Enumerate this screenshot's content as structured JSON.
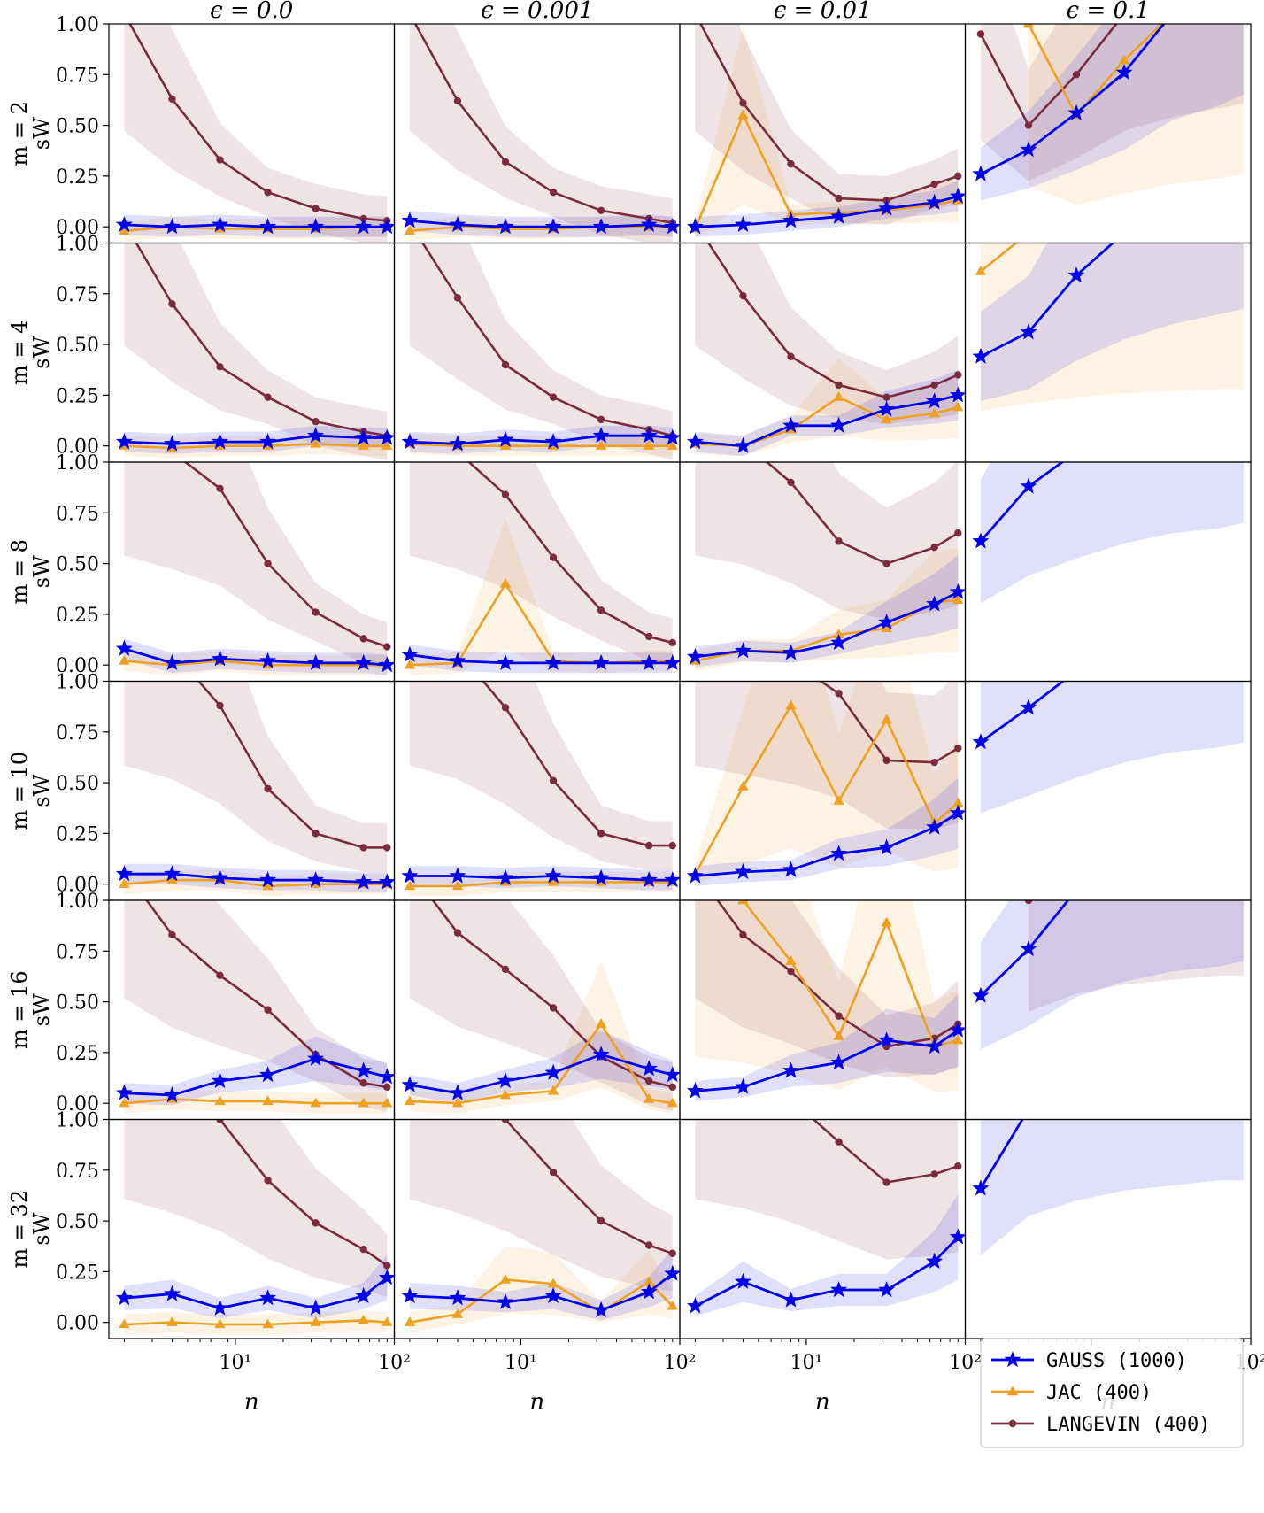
{
  "chart_data": {
    "type": "line",
    "xscale": "log",
    "xlim": [
      1.6,
      100
    ],
    "ylim": [
      -0.08,
      1.0
    ],
    "x": [
      2,
      4,
      8,
      16,
      32,
      64,
      90
    ],
    "xlabel": "n",
    "ylabel": "sW",
    "x_ticks": [
      "10¹",
      "10²"
    ],
    "y_ticks": [
      "0.00",
      "0.25",
      "0.50",
      "0.75",
      "1.00"
    ],
    "col_titles": [
      "ϵ = 0.0",
      "ϵ = 0.001",
      "ϵ = 0.01",
      "ϵ = 0.1"
    ],
    "row_labels": [
      "m = 2",
      "m = 4",
      "m = 8",
      "m = 10",
      "m = 16",
      "m = 32"
    ],
    "colors": {
      "GAUSS": "#0000ee",
      "JAC": "#f0a020",
      "LANGEVIN": "#7b2c3c"
    },
    "legend": {
      "position": "lower-right of last panel",
      "entries": [
        "GAUSS (1000)",
        "JAC (400)",
        "LANGEVIN (400)"
      ]
    },
    "panels": [
      [
        {
          "GAUSS": [
            0.01,
            0.0,
            0.01,
            0.0,
            0.0,
            0.0,
            0.0
          ],
          "JAC": [
            -0.02,
            0.0,
            -0.01,
            -0.01,
            -0.01,
            0.0,
            0.0
          ],
          "LANGEVIN": [
            1.05,
            0.63,
            0.33,
            0.17,
            0.09,
            0.04,
            0.03
          ]
        },
        {
          "GAUSS": [
            0.03,
            0.01,
            0.0,
            0.0,
            0.0,
            0.01,
            0.0
          ],
          "JAC": [
            -0.02,
            0.0,
            -0.01,
            -0.01,
            0.0,
            0.0,
            0.0
          ],
          "LANGEVIN": [
            1.05,
            0.62,
            0.32,
            0.17,
            0.08,
            0.04,
            0.02
          ]
        },
        {
          "GAUSS": [
            0.0,
            0.01,
            0.03,
            0.05,
            0.09,
            0.12,
            0.15
          ],
          "JAC": [
            -0.01,
            0.55,
            0.06,
            0.07,
            0.08,
            0.11,
            0.13
          ],
          "LANGEVIN": [
            1.05,
            0.61,
            0.31,
            0.14,
            0.13,
            0.21,
            0.25
          ]
        },
        {
          "GAUSS": [
            0.26,
            0.38,
            0.56,
            0.76,
            1.05,
            1.2,
            1.3
          ],
          "JAC": [
            null,
            1.0,
            0.55,
            0.82,
            1.05,
            1.2,
            1.3
          ],
          "LANGEVIN": [
            0.95,
            0.5,
            0.75,
            1.05,
            1.2,
            1.3,
            1.35
          ]
        }
      ],
      [
        {
          "GAUSS": [
            0.02,
            0.01,
            0.02,
            0.02,
            0.05,
            0.04,
            0.04
          ],
          "JAC": [
            0.0,
            -0.01,
            0.0,
            0.0,
            0.01,
            0.0,
            0.0
          ],
          "LANGEVIN": [
            1.1,
            0.7,
            0.39,
            0.24,
            0.12,
            0.07,
            0.05
          ]
        },
        {
          "GAUSS": [
            0.02,
            0.01,
            0.03,
            0.02,
            0.05,
            0.05,
            0.04
          ],
          "JAC": [
            0.01,
            0.0,
            0.0,
            0.0,
            0.0,
            0.0,
            0.0
          ],
          "LANGEVIN": [
            1.1,
            0.73,
            0.4,
            0.24,
            0.13,
            0.08,
            0.05
          ]
        },
        {
          "GAUSS": [
            0.02,
            0.0,
            0.1,
            0.1,
            0.18,
            0.22,
            0.25
          ],
          "JAC": [
            0.01,
            0.0,
            0.08,
            0.24,
            0.13,
            0.16,
            0.19
          ],
          "LANGEVIN": [
            1.1,
            0.74,
            0.44,
            0.3,
            0.24,
            0.3,
            0.35
          ]
        },
        {
          "GAUSS": [
            0.44,
            0.56,
            0.84,
            1.05,
            1.2,
            1.3,
            1.35
          ],
          "JAC": [
            0.86,
            1.05,
            1.2,
            1.3,
            1.35,
            1.4,
            1.4
          ],
          "LANGEVIN": [
            null,
            null,
            null,
            null,
            null,
            null,
            null
          ]
        }
      ],
      [
        {
          "GAUSS": [
            0.08,
            0.01,
            0.03,
            0.02,
            0.01,
            0.01,
            0.0
          ],
          "JAC": [
            0.02,
            0.0,
            0.02,
            0.0,
            0.0,
            0.0,
            0.0
          ],
          "LANGEVIN": [
            1.2,
            1.05,
            0.87,
            0.5,
            0.26,
            0.13,
            0.09
          ]
        },
        {
          "GAUSS": [
            0.05,
            0.02,
            0.01,
            0.01,
            0.01,
            0.01,
            0.01
          ],
          "JAC": [
            0.0,
            0.01,
            0.4,
            0.02,
            0.01,
            0.02,
            0.02
          ],
          "LANGEVIN": [
            1.2,
            1.05,
            0.84,
            0.53,
            0.27,
            0.14,
            0.11
          ]
        },
        {
          "GAUSS": [
            0.04,
            0.07,
            0.06,
            0.11,
            0.21,
            0.3,
            0.36
          ],
          "JAC": [
            0.02,
            0.07,
            0.07,
            0.15,
            0.18,
            0.31,
            0.32
          ],
          "LANGEVIN": [
            1.2,
            1.1,
            0.9,
            0.61,
            0.5,
            0.58,
            0.65
          ]
        },
        {
          "GAUSS": [
            0.61,
            0.88,
            1.05,
            1.2,
            1.3,
            1.35,
            1.4
          ],
          "JAC": [
            null,
            null,
            null,
            null,
            null,
            null,
            null
          ],
          "LANGEVIN": [
            null,
            null,
            null,
            null,
            null,
            null,
            null
          ]
        }
      ],
      [
        {
          "GAUSS": [
            0.05,
            0.05,
            0.03,
            0.02,
            0.02,
            0.01,
            0.01
          ],
          "JAC": [
            0.0,
            0.02,
            0.02,
            -0.01,
            0.0,
            0.0,
            0.0
          ],
          "LANGEVIN": [
            1.3,
            1.15,
            0.88,
            0.47,
            0.25,
            0.18,
            0.18
          ]
        },
        {
          "GAUSS": [
            0.04,
            0.04,
            0.03,
            0.04,
            0.03,
            0.02,
            0.02
          ],
          "JAC": [
            -0.01,
            -0.01,
            0.01,
            0.01,
            0.01,
            0.01,
            0.01
          ],
          "LANGEVIN": [
            1.3,
            1.15,
            0.87,
            0.51,
            0.25,
            0.19,
            0.19
          ]
        },
        {
          "GAUSS": [
            0.04,
            0.06,
            0.07,
            0.15,
            0.18,
            0.28,
            0.35
          ],
          "JAC": [
            0.05,
            0.48,
            0.88,
            0.41,
            0.81,
            0.3,
            0.4
          ],
          "LANGEVIN": [
            1.3,
            1.2,
            1.1,
            0.94,
            0.61,
            0.6,
            0.67
          ]
        },
        {
          "GAUSS": [
            0.7,
            0.87,
            1.05,
            1.2,
            1.3,
            1.35,
            1.4
          ],
          "JAC": [
            null,
            null,
            null,
            null,
            null,
            null,
            null
          ],
          "LANGEVIN": [
            null,
            null,
            null,
            null,
            null,
            null,
            null
          ]
        }
      ],
      [
        {
          "GAUSS": [
            0.05,
            0.04,
            0.11,
            0.14,
            0.22,
            0.16,
            0.13
          ],
          "JAC": [
            0.0,
            0.02,
            0.01,
            0.01,
            0.0,
            0.0,
            0.0
          ],
          "LANGEVIN": [
            1.15,
            0.83,
            0.63,
            0.46,
            0.24,
            0.1,
            0.08
          ]
        },
        {
          "GAUSS": [
            0.09,
            0.05,
            0.11,
            0.15,
            0.24,
            0.17,
            0.14
          ],
          "JAC": [
            0.01,
            0.0,
            0.04,
            0.06,
            0.39,
            0.02,
            0.0
          ],
          "LANGEVIN": [
            1.15,
            0.84,
            0.66,
            0.47,
            0.23,
            0.11,
            0.08
          ]
        },
        {
          "GAUSS": [
            0.06,
            0.08,
            0.16,
            0.2,
            0.31,
            0.28,
            0.36
          ],
          "JAC": [
            1.15,
            1.0,
            0.7,
            0.33,
            0.89,
            0.28,
            0.31
          ],
          "LANGEVIN": [
            1.15,
            0.83,
            0.65,
            0.43,
            0.28,
            0.32,
            0.39
          ]
        },
        {
          "GAUSS": [
            0.53,
            0.76,
            1.05,
            1.2,
            1.3,
            1.35,
            1.4
          ],
          "JAC": [
            null,
            null,
            null,
            null,
            null,
            null,
            null
          ],
          "LANGEVIN": [
            null,
            1.0,
            1.2,
            1.3,
            1.35,
            1.4,
            1.4
          ]
        }
      ],
      [
        {
          "GAUSS": [
            0.12,
            0.14,
            0.07,
            0.12,
            0.07,
            0.13,
            0.22
          ],
          "JAC": [
            -0.01,
            0.0,
            -0.01,
            -0.01,
            0.0,
            0.01,
            0.0
          ],
          "LANGEVIN": [
            1.35,
            1.2,
            1.0,
            0.7,
            0.49,
            0.36,
            0.28
          ]
        },
        {
          "GAUSS": [
            0.13,
            0.12,
            0.1,
            0.13,
            0.06,
            0.15,
            0.24
          ],
          "JAC": [
            0.0,
            0.04,
            0.21,
            0.19,
            0.05,
            0.2,
            0.08
          ],
          "LANGEVIN": [
            1.35,
            1.2,
            1.0,
            0.74,
            0.5,
            0.38,
            0.34
          ]
        },
        {
          "GAUSS": [
            0.08,
            0.2,
            0.11,
            0.16,
            0.16,
            0.3,
            0.42
          ],
          "JAC": [
            null,
            null,
            null,
            null,
            null,
            null,
            null
          ],
          "LANGEVIN": [
            1.35,
            1.25,
            1.1,
            0.89,
            0.69,
            0.73,
            0.77
          ]
        },
        {
          "GAUSS": [
            0.66,
            1.05,
            1.2,
            1.3,
            1.35,
            1.4,
            1.4
          ],
          "JAC": [
            null,
            null,
            null,
            null,
            null,
            null,
            null
          ],
          "LANGEVIN": [
            null,
            null,
            null,
            null,
            null,
            null,
            null
          ]
        }
      ]
    ]
  }
}
